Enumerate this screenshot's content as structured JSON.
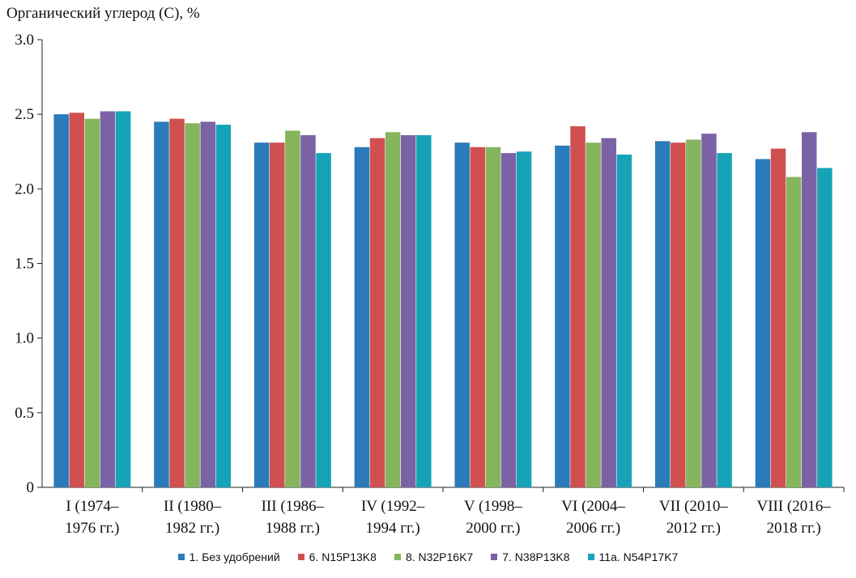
{
  "chart_data": {
    "type": "bar",
    "title": "",
    "ylabel": "Органический углерод (С), %",
    "xlabel": "",
    "ylim": [
      0,
      3.0
    ],
    "yticks": [
      "0",
      "0.5",
      "1.0",
      "1.5",
      "2.0",
      "2.5",
      "3.0"
    ],
    "grid": false,
    "legend_position": "bottom",
    "categories": [
      [
        "I (1974–",
        "1976 гг.)"
      ],
      [
        "II (1980–",
        "1982 гг.)"
      ],
      [
        "III (1986–",
        "1988 гг.)"
      ],
      [
        "IV (1992–",
        "1994 гг.)"
      ],
      [
        "V (1998–",
        "2000 гг.)"
      ],
      [
        "VI (2004–",
        "2006 гг.)"
      ],
      [
        "VII (2010–",
        "2012 гг.)"
      ],
      [
        "VIII (2016–",
        "2018 гг.)"
      ]
    ],
    "series": [
      {
        "name": "1. Без удобрений",
        "color": "#2b7bba",
        "values": [
          2.5,
          2.45,
          2.31,
          2.28,
          2.31,
          2.29,
          2.32,
          2.2
        ]
      },
      {
        "name": "6. N15P13K8",
        "color": "#d0504f",
        "values": [
          2.51,
          2.47,
          2.31,
          2.34,
          2.28,
          2.42,
          2.31,
          2.27
        ]
      },
      {
        "name": "8. N32P16K7",
        "color": "#84b55d",
        "values": [
          2.47,
          2.44,
          2.39,
          2.38,
          2.28,
          2.31,
          2.33,
          2.08
        ]
      },
      {
        "name": "7. N38P13K8",
        "color": "#7b62a4",
        "values": [
          2.52,
          2.45,
          2.36,
          2.36,
          2.24,
          2.34,
          2.37,
          2.38
        ]
      },
      {
        "name": "11а. N54P17K7",
        "color": "#16a3b8",
        "values": [
          2.52,
          2.43,
          2.24,
          2.36,
          2.25,
          2.23,
          2.24,
          2.14
        ]
      }
    ]
  }
}
